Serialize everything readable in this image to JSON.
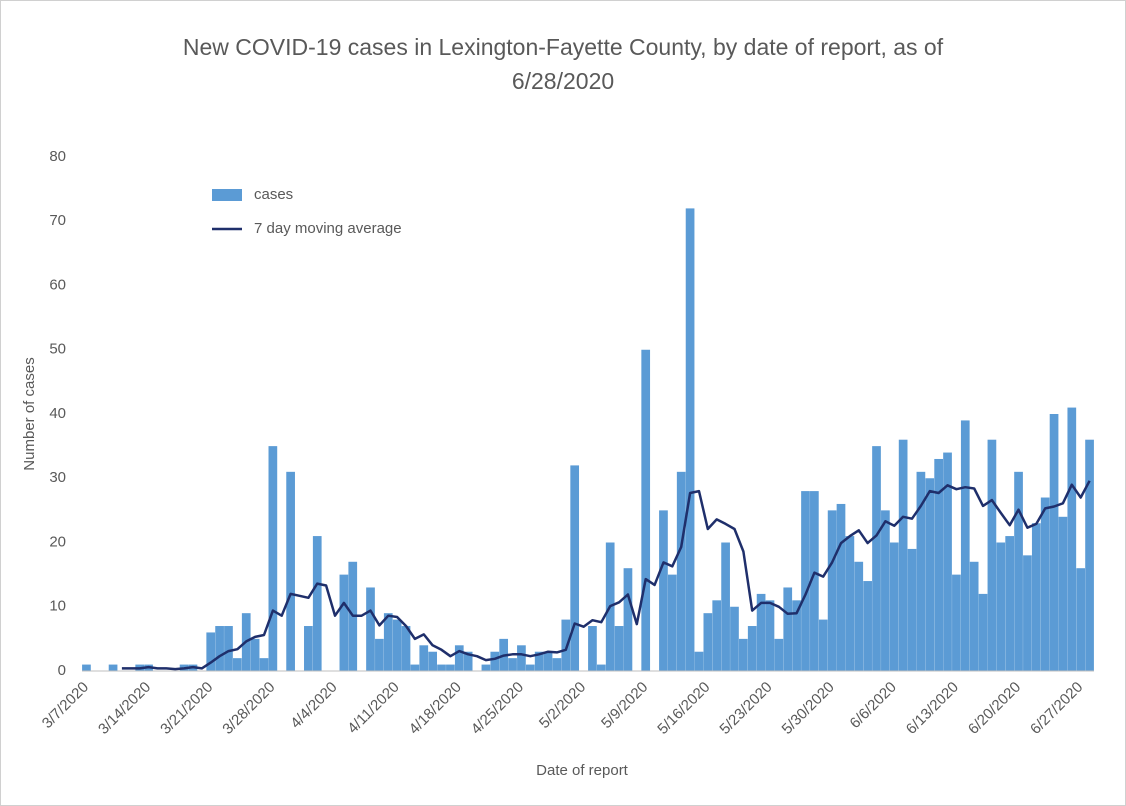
{
  "chart_data": {
    "type": "bar-line",
    "title": "New COVID-19 cases in Lexington-Fayette County, by date of report, as of 6/28/2020",
    "x_label": "Date of report",
    "y_label": "Number of cases",
    "legend": "upper left",
    "grid": false,
    "ylim": [
      0,
      80
    ],
    "yticks": [
      0,
      10,
      20,
      30,
      40,
      50,
      60,
      70,
      80
    ],
    "categories": [
      "3/7/2020",
      null,
      null,
      null,
      null,
      null,
      null,
      "3/14/2020",
      null,
      null,
      null,
      null,
      null,
      null,
      "3/21/2020",
      null,
      null,
      null,
      null,
      null,
      null,
      "3/28/2020",
      null,
      null,
      null,
      null,
      null,
      null,
      "4/4/2020",
      null,
      null,
      null,
      null,
      null,
      null,
      "4/11/2020",
      null,
      null,
      null,
      null,
      null,
      null,
      "4/18/2020",
      null,
      null,
      null,
      null,
      null,
      null,
      "4/25/2020",
      null,
      null,
      null,
      null,
      null,
      null,
      "5/2/2020",
      null,
      null,
      null,
      null,
      null,
      null,
      "5/9/2020",
      null,
      null,
      null,
      null,
      null,
      null,
      "5/16/2020",
      null,
      null,
      null,
      null,
      null,
      null,
      "5/23/2020",
      null,
      null,
      null,
      null,
      null,
      null,
      "5/30/2020",
      null,
      null,
      null,
      null,
      null,
      null,
      "6/6/2020",
      null,
      null,
      null,
      null,
      null,
      null,
      "6/13/2020",
      null,
      null,
      null,
      null,
      null,
      null,
      "6/20/2020",
      null,
      null,
      null,
      null,
      null,
      null,
      "6/27/2020",
      null
    ],
    "series": [
      {
        "name": "cases",
        "kind": "bar",
        "color": "#5b9bd5",
        "values": [
          1,
          0,
          0,
          1,
          0,
          0,
          1,
          1,
          0,
          0,
          0,
          1,
          1,
          0,
          6,
          7,
          7,
          2,
          9,
          5,
          2,
          35,
          0,
          31,
          0,
          7,
          21,
          0,
          0,
          15,
          17,
          0,
          13,
          5,
          9,
          8,
          7,
          1,
          4,
          3,
          1,
          1,
          4,
          3,
          0,
          1,
          3,
          5,
          2,
          4,
          1,
          3,
          3,
          2,
          8,
          32,
          0,
          7,
          1,
          20,
          7,
          16,
          0,
          50,
          0,
          25,
          15,
          31,
          72,
          3,
          9,
          11,
          20,
          10,
          5,
          7,
          12,
          11,
          5,
          13,
          11,
          28,
          28,
          8,
          25,
          26,
          21,
          17,
          14,
          35,
          25,
          20,
          36,
          19,
          31,
          30,
          33,
          34,
          15,
          39,
          17,
          12,
          36,
          20,
          21,
          31,
          18,
          23,
          27,
          40,
          24,
          41,
          16,
          36
        ]
      },
      {
        "name": "7 day moving average",
        "kind": "line",
        "color": "#1f2f6b",
        "values": [
          null,
          null,
          null,
          null,
          0.4,
          0.4,
          0.4,
          0.6,
          0.4,
          0.4,
          0.3,
          0.4,
          0.6,
          0.4,
          1.3,
          2.3,
          3.1,
          3.4,
          4.6,
          5.3,
          5.6,
          9.4,
          8.6,
          12,
          11.7,
          11.4,
          13.6,
          13.3,
          8.6,
          10.6,
          8.6,
          8.6,
          9.4,
          7.1,
          8.6,
          8.4,
          7.0,
          5.0,
          5.7,
          4.0,
          3.3,
          2.3,
          3.1,
          2.6,
          2.3,
          1.7,
          1.9,
          2.4,
          2.6,
          2.6,
          2.3,
          2.6,
          3.0,
          2.9,
          3.3,
          7.4,
          6.9,
          7.9,
          7.6,
          10.1,
          10.7,
          11.9,
          7.3,
          14.3,
          13.4,
          16.9,
          16.3,
          19.3,
          27.7,
          28.0,
          22.1,
          23.6,
          22.9,
          22.1,
          18.6,
          9.4,
          10.6,
          10.6,
          10.0,
          8.9,
          9.0,
          11.9,
          15.3,
          14.7,
          16.9,
          19.9,
          21.0,
          21.9,
          19.9,
          21.1,
          23.3,
          22.6,
          24.0,
          23.7,
          25.7,
          28.0,
          27.7,
          28.9,
          28.3,
          28.6,
          28.4,
          25.7,
          26.6,
          24.6,
          22.7,
          25.1,
          22.3,
          22.9,
          25.3,
          25.6,
          26.1,
          29.0,
          27.0,
          29.6
        ]
      }
    ]
  }
}
